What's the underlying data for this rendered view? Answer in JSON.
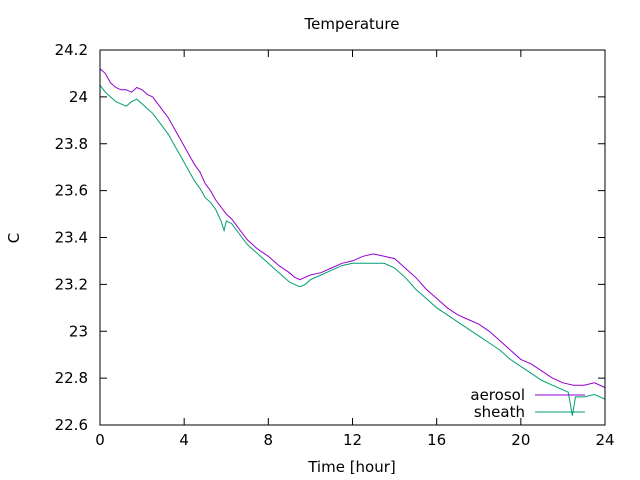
{
  "chart_data": {
    "type": "line",
    "title": "Temperature",
    "xlabel": "Time [hour]",
    "ylabel": "C",
    "xlim": [
      0,
      24
    ],
    "ylim": [
      22.6,
      24.2
    ],
    "x_ticks": [
      0,
      4,
      8,
      12,
      16,
      20,
      24
    ],
    "y_ticks": [
      22.6,
      22.8,
      23,
      23.2,
      23.4,
      23.6,
      23.8,
      24,
      24.2
    ],
    "x_tick_labels": [
      "0",
      "4",
      "8",
      "12",
      "16",
      "20",
      "24"
    ],
    "y_tick_labels": [
      "22.6",
      "22.8",
      "23",
      "23.2",
      "23.4",
      "23.6",
      "23.8",
      "24",
      "24.2"
    ],
    "grid": false,
    "legend_position": "bottom-right",
    "series": [
      {
        "name": "aerosol",
        "color": "#9400d3",
        "points": [
          [
            0,
            24.12
          ],
          [
            0.25,
            24.1
          ],
          [
            0.5,
            24.06
          ],
          [
            0.75,
            24.04
          ],
          [
            1.0,
            24.03
          ],
          [
            1.25,
            24.03
          ],
          [
            1.5,
            24.02
          ],
          [
            1.75,
            24.04
          ],
          [
            2.0,
            24.03
          ],
          [
            2.25,
            24.01
          ],
          [
            2.5,
            24.0
          ],
          [
            2.75,
            23.97
          ],
          [
            3.0,
            23.94
          ],
          [
            3.25,
            23.91
          ],
          [
            3.5,
            23.87
          ],
          [
            3.75,
            23.83
          ],
          [
            4.0,
            23.79
          ],
          [
            4.25,
            23.75
          ],
          [
            4.5,
            23.71
          ],
          [
            4.75,
            23.68
          ],
          [
            5.0,
            23.63
          ],
          [
            5.25,
            23.6
          ],
          [
            5.5,
            23.56
          ],
          [
            5.75,
            23.53
          ],
          [
            6.0,
            23.5
          ],
          [
            6.25,
            23.48
          ],
          [
            6.5,
            23.45
          ],
          [
            6.75,
            23.42
          ],
          [
            7.0,
            23.39
          ],
          [
            7.5,
            23.35
          ],
          [
            8.0,
            23.32
          ],
          [
            8.5,
            23.28
          ],
          [
            9.0,
            23.25
          ],
          [
            9.25,
            23.23
          ],
          [
            9.5,
            23.22
          ],
          [
            9.75,
            23.23
          ],
          [
            10.0,
            23.24
          ],
          [
            10.5,
            23.25
          ],
          [
            11.0,
            23.27
          ],
          [
            11.5,
            23.29
          ],
          [
            12.0,
            23.3
          ],
          [
            12.5,
            23.32
          ],
          [
            13.0,
            23.33
          ],
          [
            13.5,
            23.32
          ],
          [
            14.0,
            23.31
          ],
          [
            14.5,
            23.27
          ],
          [
            15.0,
            23.23
          ],
          [
            15.5,
            23.18
          ],
          [
            16.0,
            23.14
          ],
          [
            16.5,
            23.1
          ],
          [
            17.0,
            23.07
          ],
          [
            17.5,
            23.05
          ],
          [
            18.0,
            23.03
          ],
          [
            18.5,
            23.0
          ],
          [
            19.0,
            22.96
          ],
          [
            19.5,
            22.92
          ],
          [
            20.0,
            22.88
          ],
          [
            20.5,
            22.86
          ],
          [
            21.0,
            22.83
          ],
          [
            21.5,
            22.8
          ],
          [
            22.0,
            22.78
          ],
          [
            22.5,
            22.77
          ],
          [
            23.0,
            22.77
          ],
          [
            23.5,
            22.78
          ],
          [
            24.0,
            22.76
          ]
        ]
      },
      {
        "name": "sheath",
        "color": "#009e73",
        "points": [
          [
            0,
            24.05
          ],
          [
            0.25,
            24.02
          ],
          [
            0.5,
            24.0
          ],
          [
            0.75,
            23.98
          ],
          [
            1.0,
            23.97
          ],
          [
            1.25,
            23.96
          ],
          [
            1.5,
            23.98
          ],
          [
            1.75,
            23.99
          ],
          [
            2.0,
            23.97
          ],
          [
            2.25,
            23.95
          ],
          [
            2.5,
            23.93
          ],
          [
            2.75,
            23.9
          ],
          [
            3.0,
            23.87
          ],
          [
            3.25,
            23.84
          ],
          [
            3.5,
            23.8
          ],
          [
            3.75,
            23.76
          ],
          [
            4.0,
            23.72
          ],
          [
            4.25,
            23.68
          ],
          [
            4.5,
            23.64
          ],
          [
            4.75,
            23.61
          ],
          [
            5.0,
            23.57
          ],
          [
            5.25,
            23.55
          ],
          [
            5.5,
            23.52
          ],
          [
            5.75,
            23.47
          ],
          [
            5.9,
            23.43
          ],
          [
            6.0,
            23.47
          ],
          [
            6.25,
            23.46
          ],
          [
            6.5,
            23.43
          ],
          [
            6.75,
            23.4
          ],
          [
            7.0,
            23.37
          ],
          [
            7.5,
            23.33
          ],
          [
            8.0,
            23.29
          ],
          [
            8.5,
            23.25
          ],
          [
            9.0,
            23.21
          ],
          [
            9.25,
            23.2
          ],
          [
            9.5,
            23.19
          ],
          [
            9.75,
            23.2
          ],
          [
            10.0,
            23.22
          ],
          [
            10.5,
            23.24
          ],
          [
            11.0,
            23.26
          ],
          [
            11.5,
            23.28
          ],
          [
            12.0,
            23.29
          ],
          [
            12.5,
            23.29
          ],
          [
            13.0,
            23.29
          ],
          [
            13.5,
            23.29
          ],
          [
            14.0,
            23.27
          ],
          [
            14.5,
            23.23
          ],
          [
            15.0,
            23.18
          ],
          [
            15.5,
            23.14
          ],
          [
            16.0,
            23.1
          ],
          [
            16.5,
            23.07
          ],
          [
            17.0,
            23.04
          ],
          [
            17.5,
            23.01
          ],
          [
            18.0,
            22.98
          ],
          [
            18.5,
            22.95
          ],
          [
            19.0,
            22.92
          ],
          [
            19.5,
            22.88
          ],
          [
            20.0,
            22.85
          ],
          [
            20.5,
            22.82
          ],
          [
            21.0,
            22.79
          ],
          [
            21.5,
            22.77
          ],
          [
            22.0,
            22.75
          ],
          [
            22.25,
            22.74
          ],
          [
            22.45,
            22.64
          ],
          [
            22.6,
            22.72
          ],
          [
            23.0,
            22.72
          ],
          [
            23.5,
            22.73
          ],
          [
            24.0,
            22.71
          ]
        ]
      }
    ]
  }
}
